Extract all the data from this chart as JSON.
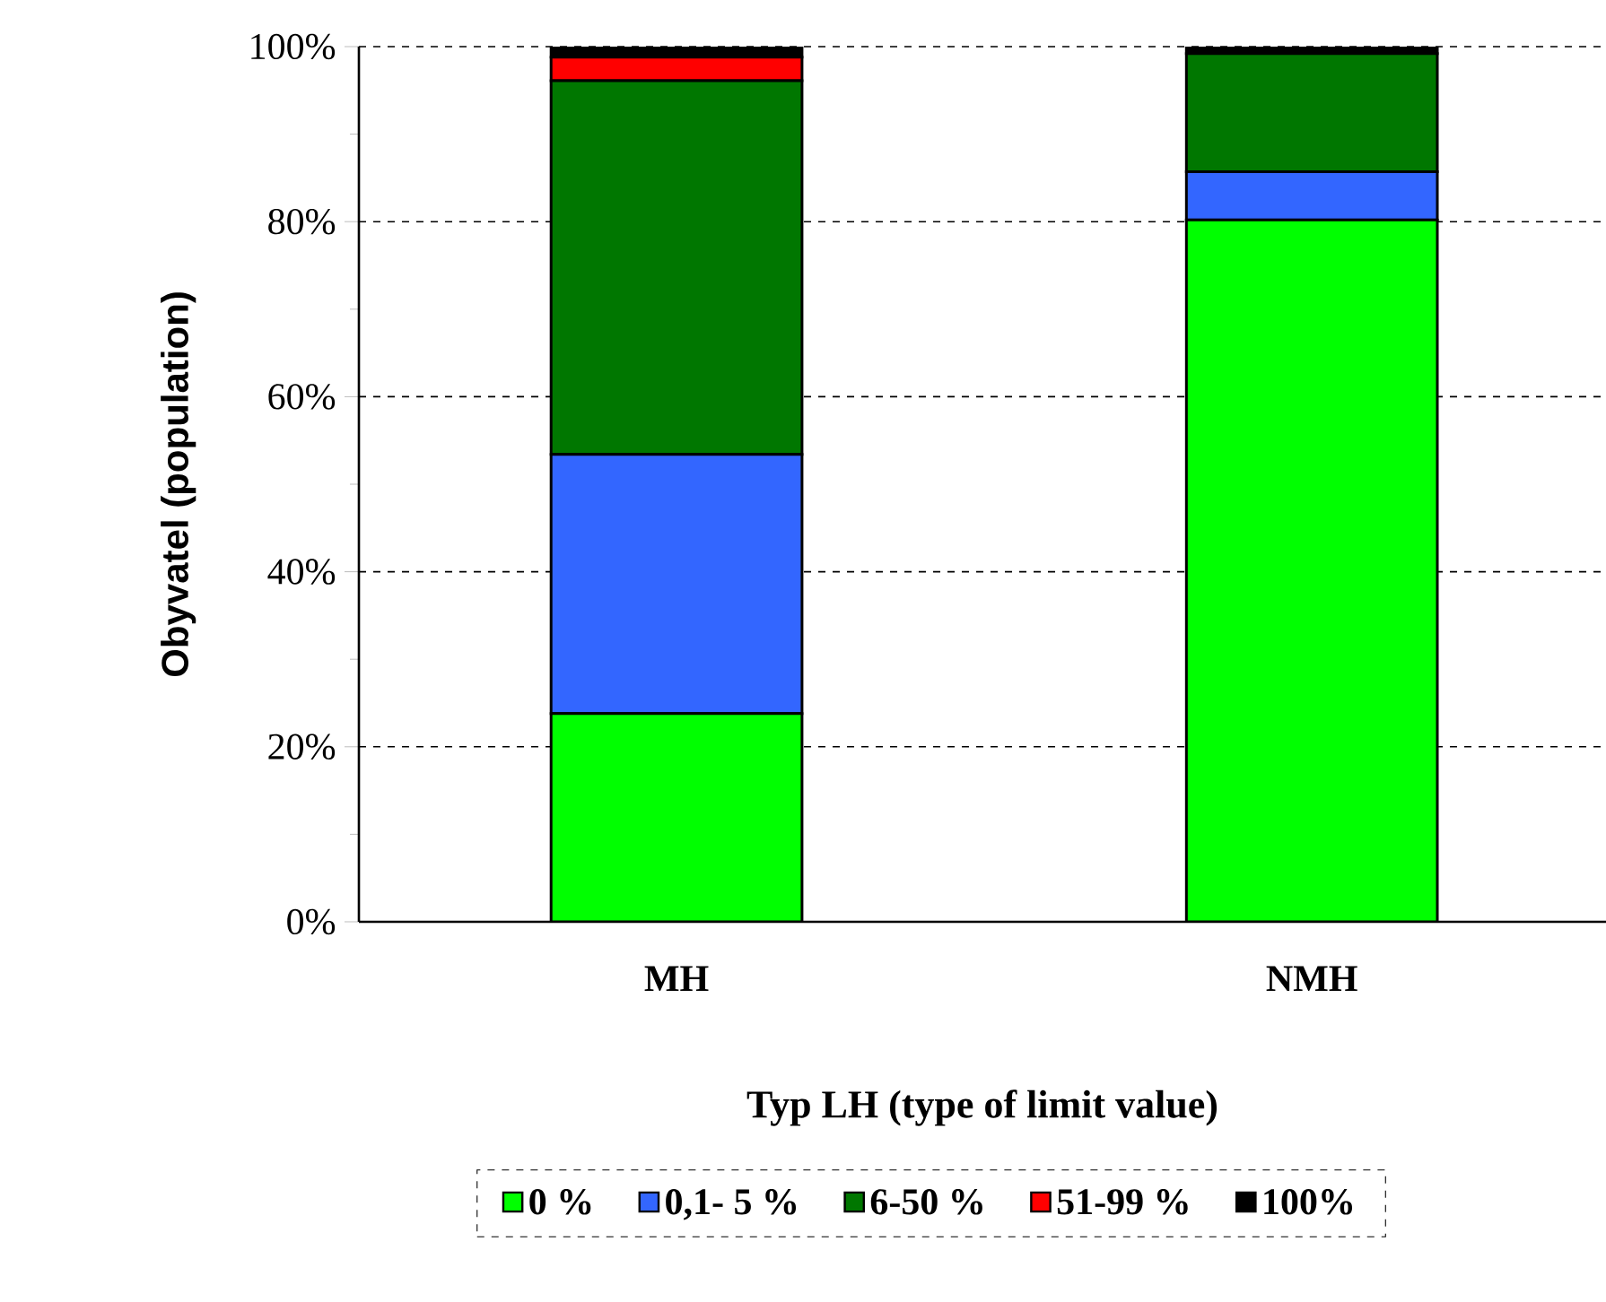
{
  "chart_data": {
    "type": "bar",
    "stacked": true,
    "xlabel": "Typ LH (type of limit value)",
    "ylabel": "Obyvatel (population)",
    "categories": [
      "MH",
      "NMH"
    ],
    "series": [
      {
        "name": "0 %",
        "color": "#00ff00",
        "values": [
          23.8,
          80.2
        ]
      },
      {
        "name": "0,1- 5 %",
        "color": "#3366ff",
        "values": [
          29.6,
          5.5
        ]
      },
      {
        "name": "6-50 %",
        "color": "#007700",
        "values": [
          42.7,
          13.5
        ]
      },
      {
        "name": "51-99 %",
        "color": "#ff0000",
        "values": [
          2.7,
          0
        ]
      },
      {
        "name": "100%",
        "color": "#000000",
        "values": [
          1.2,
          0.8
        ]
      }
    ],
    "ylim": [
      0,
      100
    ],
    "yticks": [
      {
        "value": 0,
        "label": "0%"
      },
      {
        "value": 20,
        "label": "20%"
      },
      {
        "value": 40,
        "label": "40%"
      },
      {
        "value": 60,
        "label": "60%"
      },
      {
        "value": 80,
        "label": "80%"
      },
      {
        "value": 100,
        "label": "100%"
      }
    ],
    "grid": "y",
    "legend": "bottom"
  }
}
